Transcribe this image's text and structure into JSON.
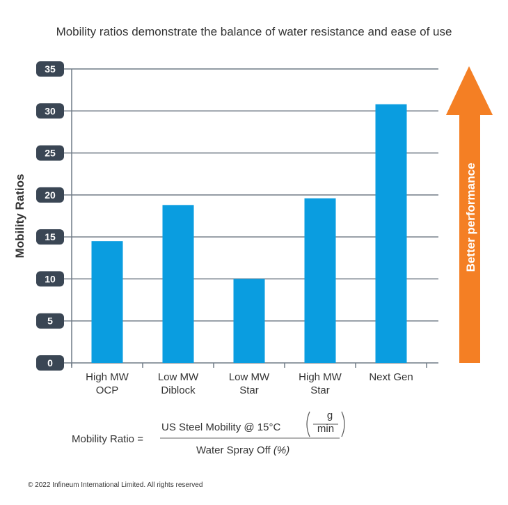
{
  "chart_data": {
    "type": "bar",
    "title": "Mobility ratios demonstrate the balance of water resistance and ease of use",
    "ylabel": "Mobility Ratios",
    "xlabel": "",
    "ylim": [
      0,
      35
    ],
    "yticks": [
      0,
      5,
      10,
      15,
      20,
      25,
      30,
      35
    ],
    "grid": true,
    "categories": [
      [
        "High MW",
        "OCP"
      ],
      [
        "Low MW",
        "Diblock"
      ],
      [
        "Low MW",
        "Star"
      ],
      [
        "High MW",
        "Star"
      ],
      [
        "Next Gen"
      ]
    ],
    "values": [
      14.5,
      18.8,
      10.0,
      19.6,
      30.8
    ],
    "bar_color": "#0a9de0",
    "annotation": "Better performance",
    "arrow_color": "#f47f24"
  },
  "formula": {
    "lhs": "Mobility Ratio =",
    "numerator": "US Steel Mobility @ 15°C",
    "unit_top": "g",
    "unit_bottom": "min",
    "denominator": "Water Spray Off",
    "denominator_unit": "(%)"
  },
  "copyright": "© 2022 Infineum International Limited. All rights reserved"
}
